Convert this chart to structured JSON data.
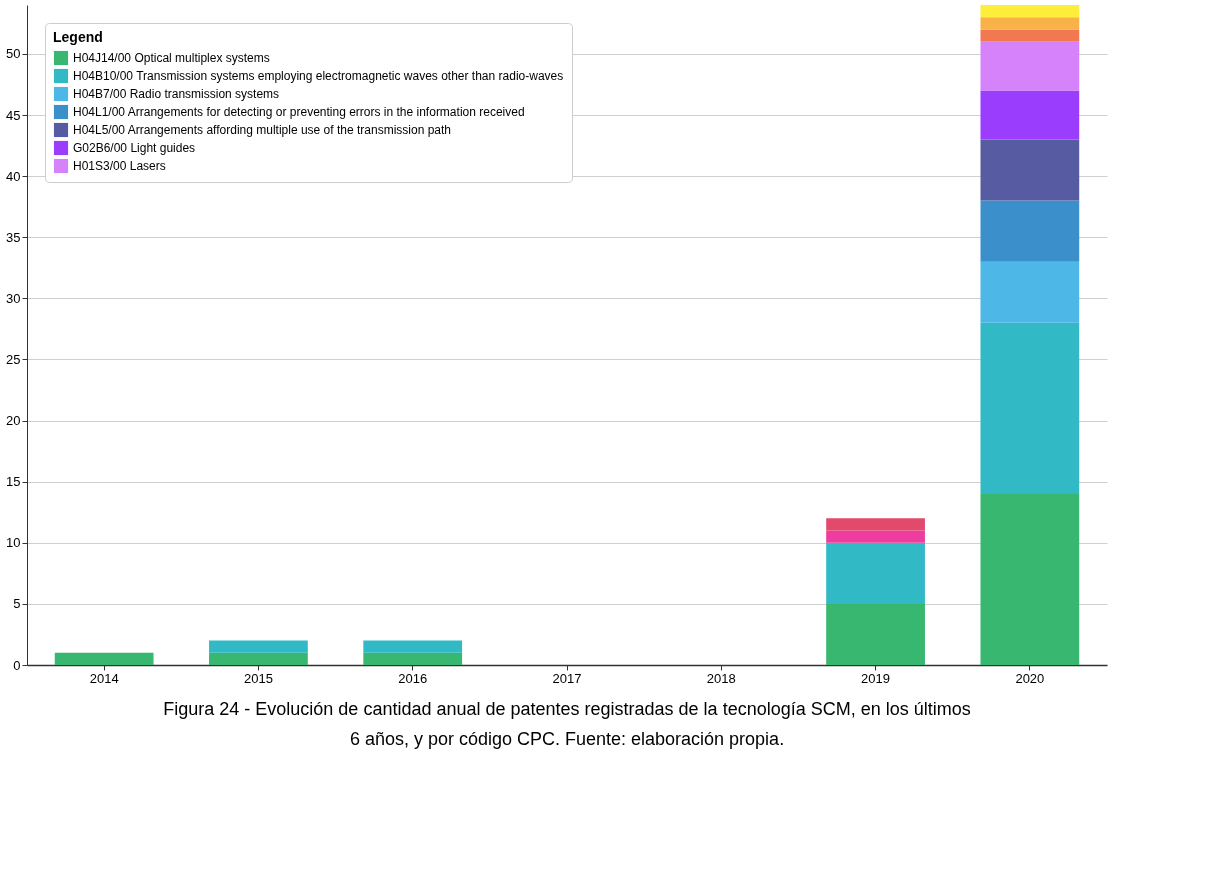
{
  "chart_data": {
    "type": "bar",
    "stacked": true,
    "categories": [
      "2014",
      "2015",
      "2016",
      "2017",
      "2018",
      "2019",
      "2020"
    ],
    "series": [
      {
        "name": "H04J14/00 Optical multiplex systems",
        "color": "#37b76f",
        "values": [
          1,
          1,
          1,
          0,
          0,
          5,
          14
        ]
      },
      {
        "name": "H04B10/00 Transmission systems employing electromagnetic waves other than radio-waves",
        "color": "#31b9c5",
        "values": [
          0,
          1,
          1,
          0,
          0,
          5,
          14
        ]
      },
      {
        "name": "H04B7/00 Radio transmission systems",
        "color": "#4db8e8",
        "values": [
          0,
          0,
          0,
          0,
          0,
          0,
          5
        ]
      },
      {
        "name": "H04L1/00 Arrangements for detecting or preventing errors in the information received",
        "color": "#3b8fca",
        "values": [
          0,
          0,
          0,
          0,
          0,
          0,
          5
        ]
      },
      {
        "name": "H04L5/00 Arrangements affording multiple use of the transmission path",
        "color": "#575ba1",
        "values": [
          0,
          0,
          0,
          0,
          0,
          0,
          5
        ]
      },
      {
        "name": "G02B6/00 Light guides",
        "color": "#9b3dfd",
        "values": [
          0,
          0,
          0,
          0,
          0,
          0,
          4
        ]
      },
      {
        "name": "H01S3/00 Lasers",
        "color": "#d683fb",
        "values": [
          0,
          0,
          0,
          0,
          0,
          0,
          4
        ]
      },
      {
        "color": "#ee3d9f",
        "values": [
          0,
          0,
          0,
          0,
          0,
          1,
          0
        ]
      },
      {
        "color": "#e2496b",
        "values": [
          0,
          0,
          0,
          0,
          0,
          1,
          0
        ]
      },
      {
        "color": "#f27852",
        "values": [
          0,
          0,
          0,
          0,
          0,
          0,
          1
        ]
      },
      {
        "color": "#f9b24a",
        "values": [
          0,
          0,
          0,
          0,
          0,
          0,
          1
        ]
      },
      {
        "color": "#fdee3b",
        "values": [
          0,
          0,
          0,
          0,
          0,
          0,
          1
        ]
      }
    ],
    "ylim": [
      0,
      54
    ],
    "yticks": [
      0,
      5,
      10,
      15,
      20,
      25,
      30,
      35,
      40,
      45,
      50
    ],
    "grid": "y",
    "legend": "top left",
    "legend_title": "Legend",
    "annotations": [
      "Figura 24 - Evolución de cantidad anual de patentes registradas de la tecnología SCM, en los últimos 6 años, y por código CPC. Fuente: elaboración propia."
    ]
  }
}
